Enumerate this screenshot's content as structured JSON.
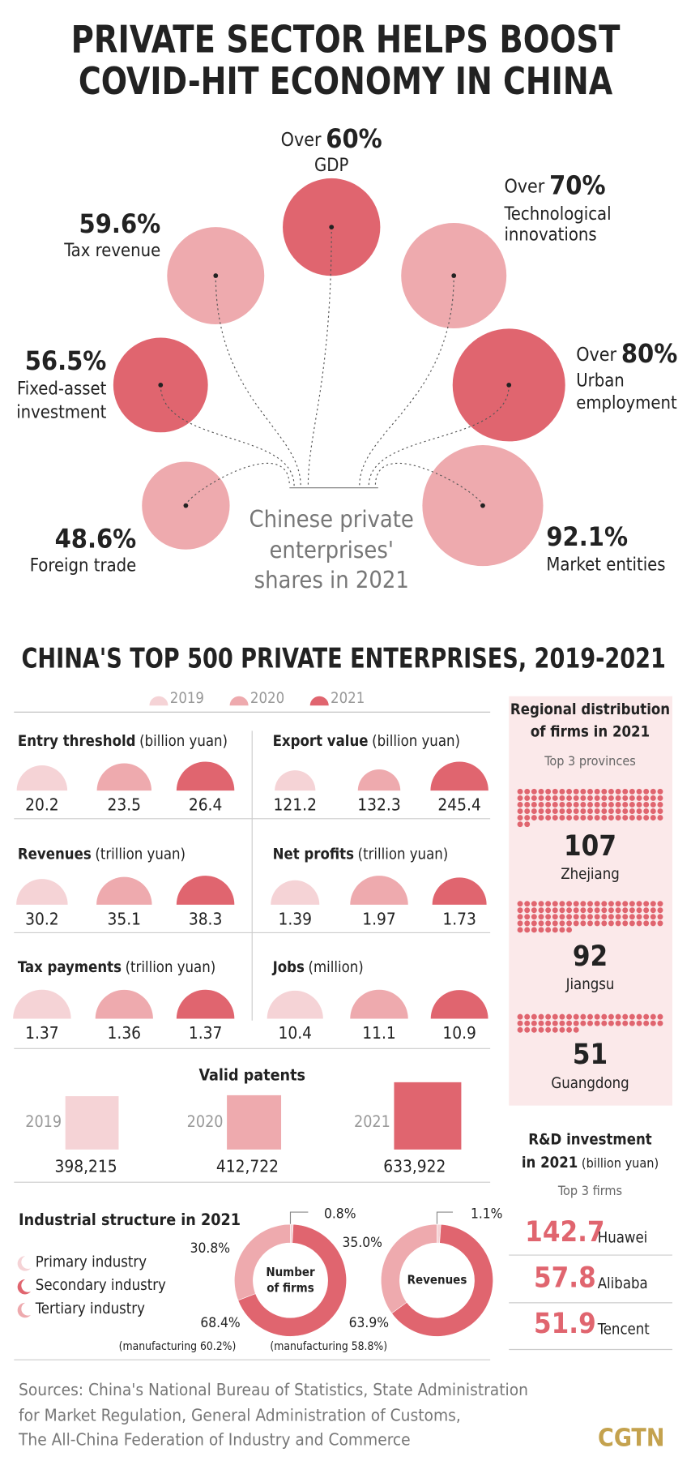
{
  "title": [
    "PRIVATE SECTOR HELPS BOOST",
    "COVID-HIT ECONOMY IN CHINA"
  ],
  "shares": {
    "center_label": [
      "Chinese private",
      "enterprises'",
      "shares in 2021"
    ],
    "items": [
      {
        "prefix": "Over",
        "value": 60,
        "value_label": "60%",
        "label": [
          "GDP"
        ],
        "color": "#e0656f"
      },
      {
        "value": 59.6,
        "value_label": "59.6%",
        "label": [
          "Tax revenue"
        ],
        "color": "#eeaaae"
      },
      {
        "prefix": "Over",
        "value": 70,
        "value_label": "70%",
        "label": [
          "Technological",
          "innovations"
        ],
        "color": "#eeaaae"
      },
      {
        "value": 56.5,
        "value_label": "56.5%",
        "label": [
          "Fixed-asset",
          "investment"
        ],
        "color": "#e0656f"
      },
      {
        "prefix": "Over",
        "value": 80,
        "value_label": "80%",
        "label": [
          "Urban",
          "employment"
        ],
        "color": "#e0656f"
      },
      {
        "value": 48.6,
        "value_label": "48.6%",
        "label": [
          "Foreign trade"
        ],
        "color": "#eeaaae"
      },
      {
        "value": 92.1,
        "value_label": "92.1%",
        "label": [
          "Market entities"
        ],
        "color": "#eeaaae"
      }
    ]
  },
  "top500": {
    "title": "CHINA'S TOP 500 PRIVATE ENTERPRISES, 2019-2021",
    "legend": [
      "2019",
      "2020",
      "2021"
    ],
    "colors": [
      "#f5d3d6",
      "#eeaaae",
      "#e0656f"
    ],
    "panels": [
      {
        "title": "Entry threshold",
        "unit": "(billion yuan)",
        "values": [
          20.2,
          23.5,
          26.4
        ]
      },
      {
        "title": "Export value",
        "unit": "(billion yuan)",
        "values": [
          121.2,
          132.3,
          245.4
        ]
      },
      {
        "title": "Revenues",
        "unit": "(trillion yuan)",
        "values": [
          30.2,
          35.1,
          38.3
        ]
      },
      {
        "title": "Net profits",
        "unit": "(trillion yuan)",
        "values": [
          1.39,
          1.97,
          1.73
        ]
      },
      {
        "title": "Tax payments",
        "unit": "(trillion yuan)",
        "values": [
          1.37,
          1.36,
          1.37
        ]
      },
      {
        "title": "Jobs",
        "unit": "(million)",
        "values": [
          10.4,
          11.1,
          10.9
        ]
      }
    ]
  },
  "patents": {
    "title": "Valid patents",
    "years": [
      "2019",
      "2020",
      "2021"
    ],
    "values": [
      398215,
      412722,
      633922
    ],
    "value_labels": [
      "398,215",
      "412,722",
      "633,922"
    ]
  },
  "industry": {
    "title": "Industrial structure in 2021",
    "legend": [
      "Primary industry",
      "Secondary industry",
      "Tertiary industry"
    ],
    "colors": [
      "#f5d3d6",
      "#e0656f",
      "#eeaaae"
    ],
    "charts": [
      {
        "label": [
          "Number",
          "of firms"
        ],
        "values": [
          0.8,
          68.4,
          30.8
        ],
        "value_labels": [
          "0.8%",
          "68.4%",
          "30.8%"
        ],
        "note": "(manufacturing 60.2%)"
      },
      {
        "label": [
          "Revenues"
        ],
        "values": [
          1.1,
          63.9,
          35.0
        ],
        "value_labels": [
          "1.1%",
          "63.9%",
          "35.0%"
        ],
        "note": "(manufacturing 58.8%)"
      }
    ]
  },
  "regions": {
    "title": [
      "Regional distribution",
      "of firms in 2021"
    ],
    "subtitle": "Top 3 provinces",
    "items": [
      {
        "name": "Zhejiang",
        "value": 107
      },
      {
        "name": "Jiangsu",
        "value": 92
      },
      {
        "name": "Guangdong",
        "value": 51
      }
    ]
  },
  "rd": {
    "title": [
      "R&D investment",
      "in 2021"
    ],
    "unit": "(billion yuan)",
    "subtitle": "Top 3 firms",
    "items": [
      {
        "name": "Huawei",
        "value": 142.7
      },
      {
        "name": "Alibaba",
        "value": 57.8
      },
      {
        "name": "Tencent",
        "value": 51.9
      }
    ]
  },
  "sources": [
    "Sources: China's National Bureau of Statistics, State Administration",
    "for Market Regulation, General Administration of Customs,",
    "The All-China Federation of Industry and Commerce"
  ],
  "logo": "CGTN"
}
